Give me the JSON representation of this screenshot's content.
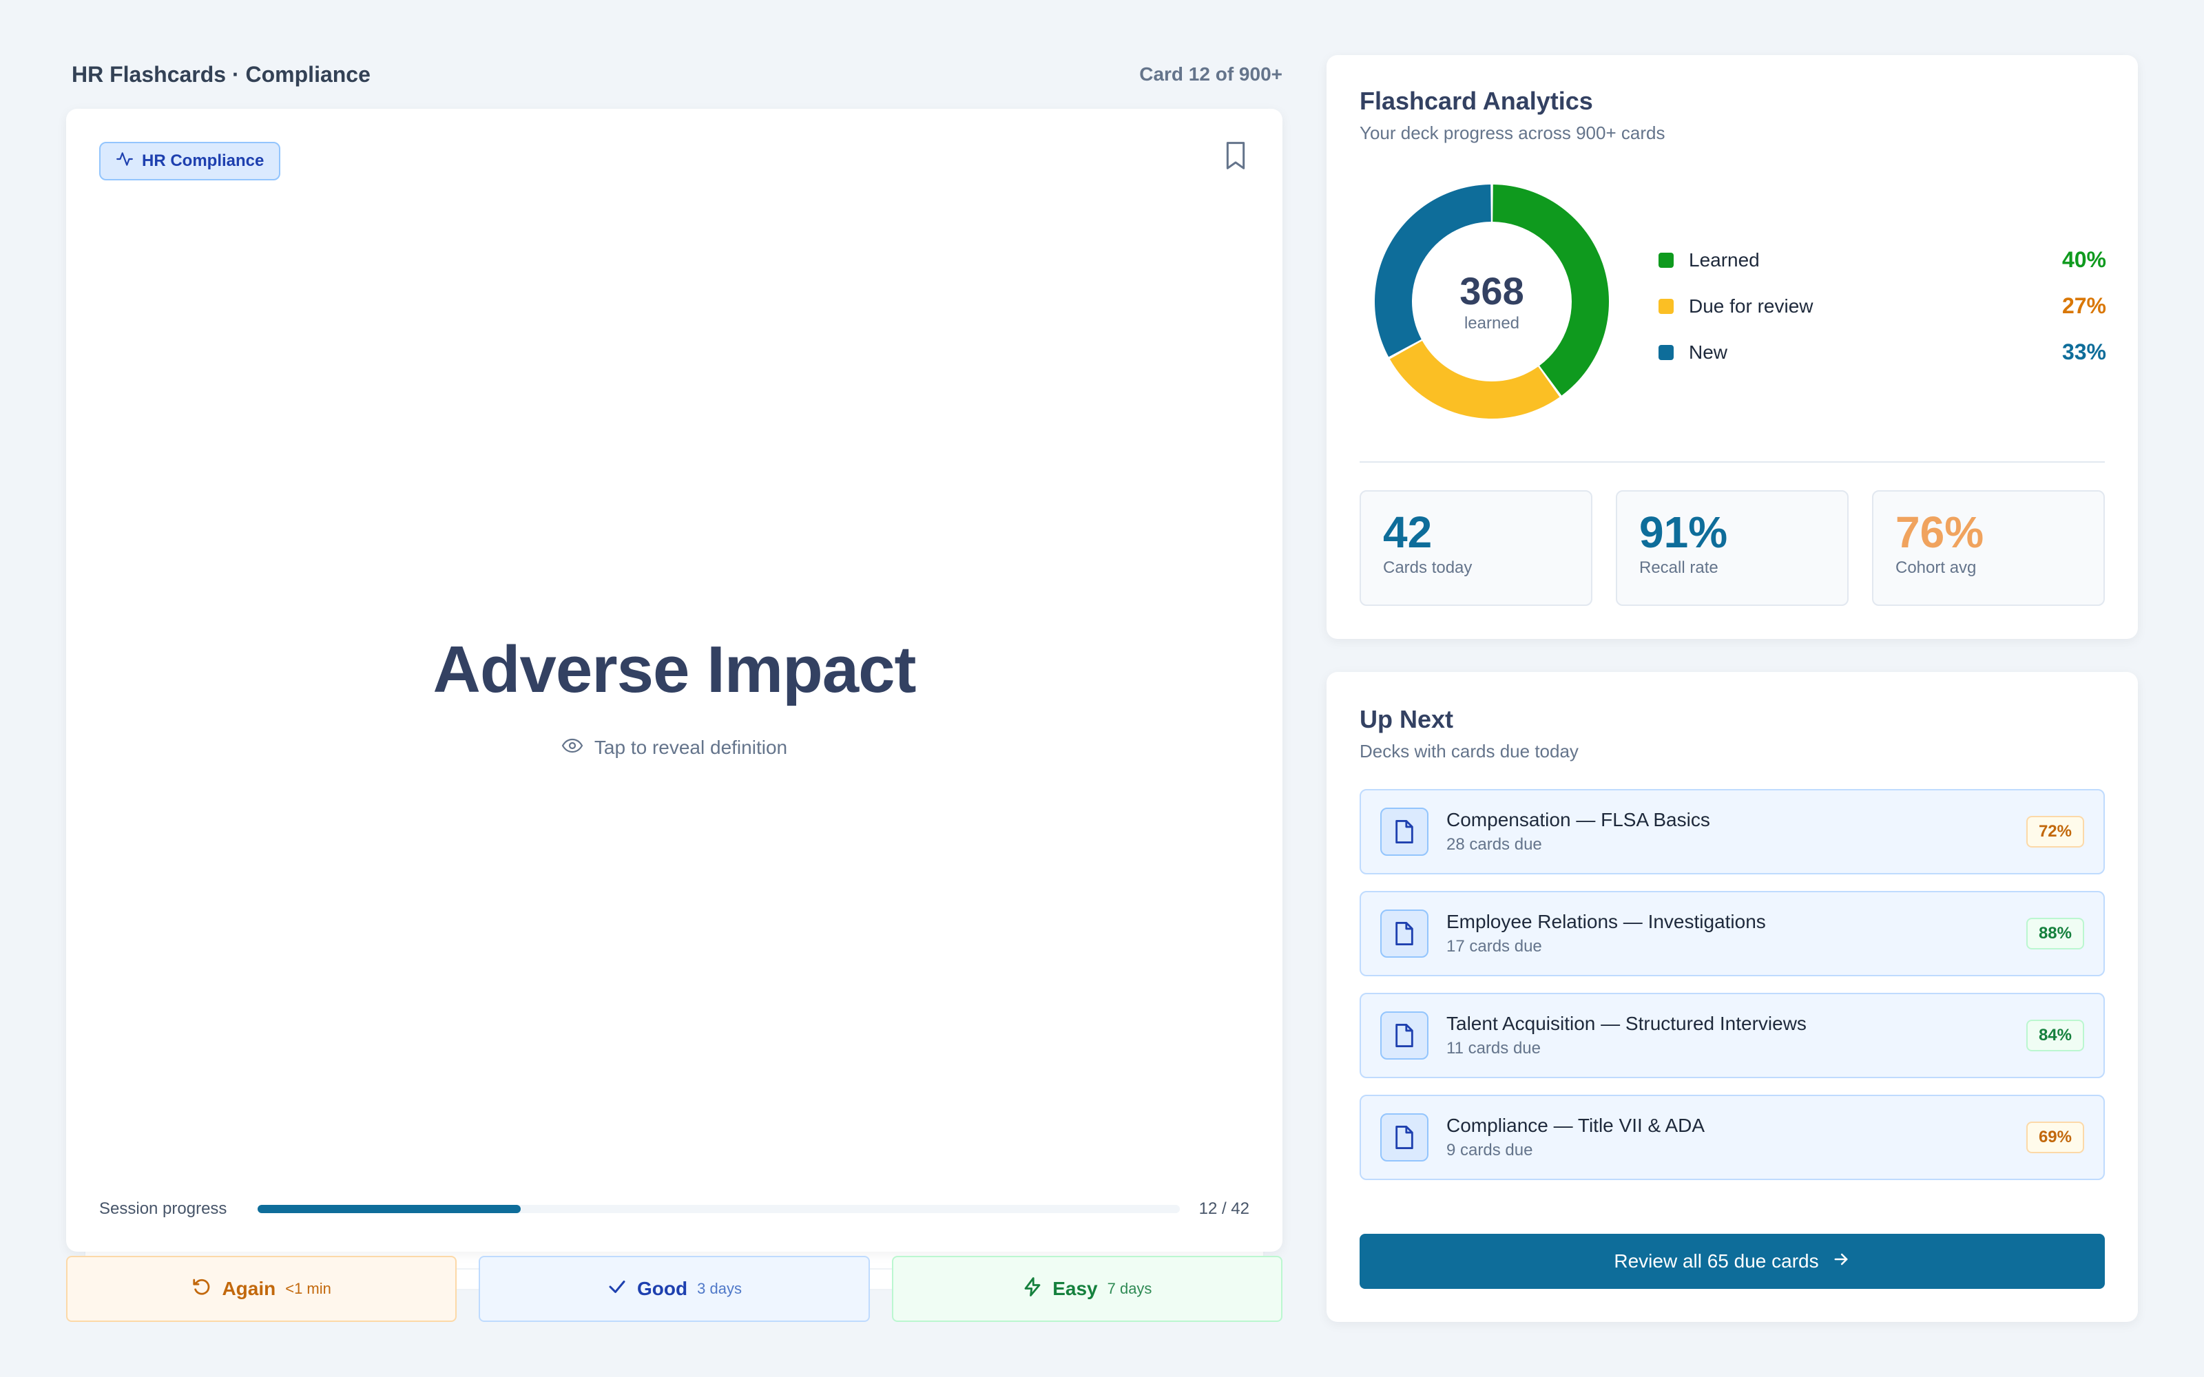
{
  "header": {
    "deck_title": "HR Flashcards · Compliance",
    "card_counter": "Card 12 of 900+"
  },
  "card": {
    "category": "HR Compliance",
    "category_icon": "activity-icon",
    "term": "Adverse Impact",
    "reveal_hint": "Tap to reveal definition",
    "reveal_icon": "eye-icon",
    "bookmark_icon": "bookmark-icon"
  },
  "session": {
    "label": "Session progress",
    "current": 12,
    "total": 42,
    "count_text": "12 / 42",
    "fraction": 0.2857
  },
  "answers": [
    {
      "label": "Again",
      "sub": "<1 min",
      "icon": "rotate-ccw-icon"
    },
    {
      "label": "Good",
      "sub": "3 days",
      "icon": "check-icon"
    },
    {
      "label": "Easy",
      "sub": "7 days",
      "icon": "zap-icon"
    }
  ],
  "analytics": {
    "title": "Flashcard Analytics",
    "subtitle": "Your deck progress across 900+ cards",
    "donut_value": "368",
    "donut_label": "learned",
    "legend": [
      {
        "label": "Learned",
        "value": "40%",
        "color": "#0f9a1e"
      },
      {
        "label": "Due for review",
        "value": "27%",
        "color": "#fbbf24"
      },
      {
        "label": "New",
        "value": "33%",
        "color": "#0e6d9a"
      }
    ],
    "stats": [
      {
        "value": "42",
        "label": "Cards today",
        "color": "#0e6d9a"
      },
      {
        "value": "91%",
        "label": "Recall rate",
        "color": "#0e6d9a"
      },
      {
        "value": "76%",
        "label": "Cohort avg",
        "color": "#f0a35e"
      }
    ]
  },
  "chart_data": {
    "type": "pie",
    "categories": [
      "Learned",
      "Due for review",
      "New"
    ],
    "values": [
      40,
      27,
      33
    ],
    "colors": [
      "#0f9a1e",
      "#fbbf24",
      "#0e6d9a"
    ],
    "center_value": "368",
    "center_label": "learned",
    "legend": "right"
  },
  "upnext": {
    "title": "Up Next",
    "subtitle": "Decks with cards due today",
    "decks": [
      {
        "name": "Compensation — FLSA Basics",
        "due": "28 cards due",
        "pct": "72%",
        "tone": "amber"
      },
      {
        "name": "Employee Relations — Investigations",
        "due": "17 cards due",
        "pct": "88%",
        "tone": "green"
      },
      {
        "name": "Talent Acquisition — Structured Interviews",
        "due": "11 cards due",
        "pct": "84%",
        "tone": "green"
      },
      {
        "name": "Compliance — Title VII & ADA",
        "due": "9 cards due",
        "pct": "69%",
        "tone": "amber"
      }
    ],
    "review_button": "Review all 65 due cards"
  }
}
